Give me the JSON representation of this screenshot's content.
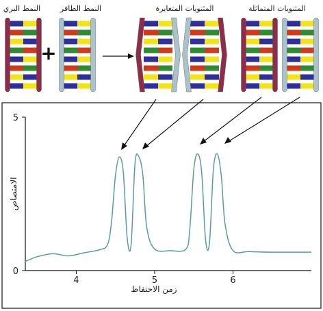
{
  "labels": {
    "wild": "النمط البري",
    "mutant": "النمط الطافر",
    "hetero": "المثنويات المتغايرة",
    "homo": "المثنويات المتماثلة",
    "plus": "+",
    "xlabel": "زمن الاحتفاظ",
    "ylabel": "الامتصاص"
  },
  "colors": {
    "purple_strand": "#8e2c4c",
    "teal_strand": "#aac3cb",
    "blue": "#2e2e9c",
    "red": "#cc3b1b",
    "yellow": "#f2e419",
    "green": "#2f8a32",
    "trace": "#5a9aa5"
  },
  "chart_data": {
    "type": "line",
    "xlabel": "زمن الاحتفاظ",
    "ylabel": "الامتصاص",
    "xlim": [
      3.35,
      7.0
    ],
    "ylim": [
      0,
      5
    ],
    "xticks": [
      4,
      5,
      6
    ],
    "yticks": [
      0,
      5
    ],
    "series": [
      {
        "x": [
          3.35,
          3.5,
          3.7,
          3.9,
          4.1,
          4.3,
          4.4,
          4.45,
          4.5,
          4.55,
          4.6,
          4.65,
          4.7,
          4.75,
          4.8,
          4.85,
          4.9,
          5.0,
          5.2,
          5.4,
          5.45,
          5.5,
          5.55,
          5.6,
          5.65,
          5.7,
          5.75,
          5.8,
          5.85,
          5.9,
          6.0,
          6.2,
          6.5,
          7.0
        ],
        "y": [
          0.3,
          0.45,
          0.55,
          0.48,
          0.58,
          0.68,
          0.85,
          1.6,
          3.1,
          3.7,
          3.2,
          1.05,
          0.85,
          3.5,
          3.7,
          3.1,
          1.4,
          0.7,
          0.65,
          0.7,
          1.4,
          3.3,
          3.8,
          3.2,
          1.0,
          0.9,
          3.3,
          3.8,
          3.1,
          1.5,
          0.65,
          0.62,
          0.6,
          0.6
        ]
      }
    ]
  }
}
